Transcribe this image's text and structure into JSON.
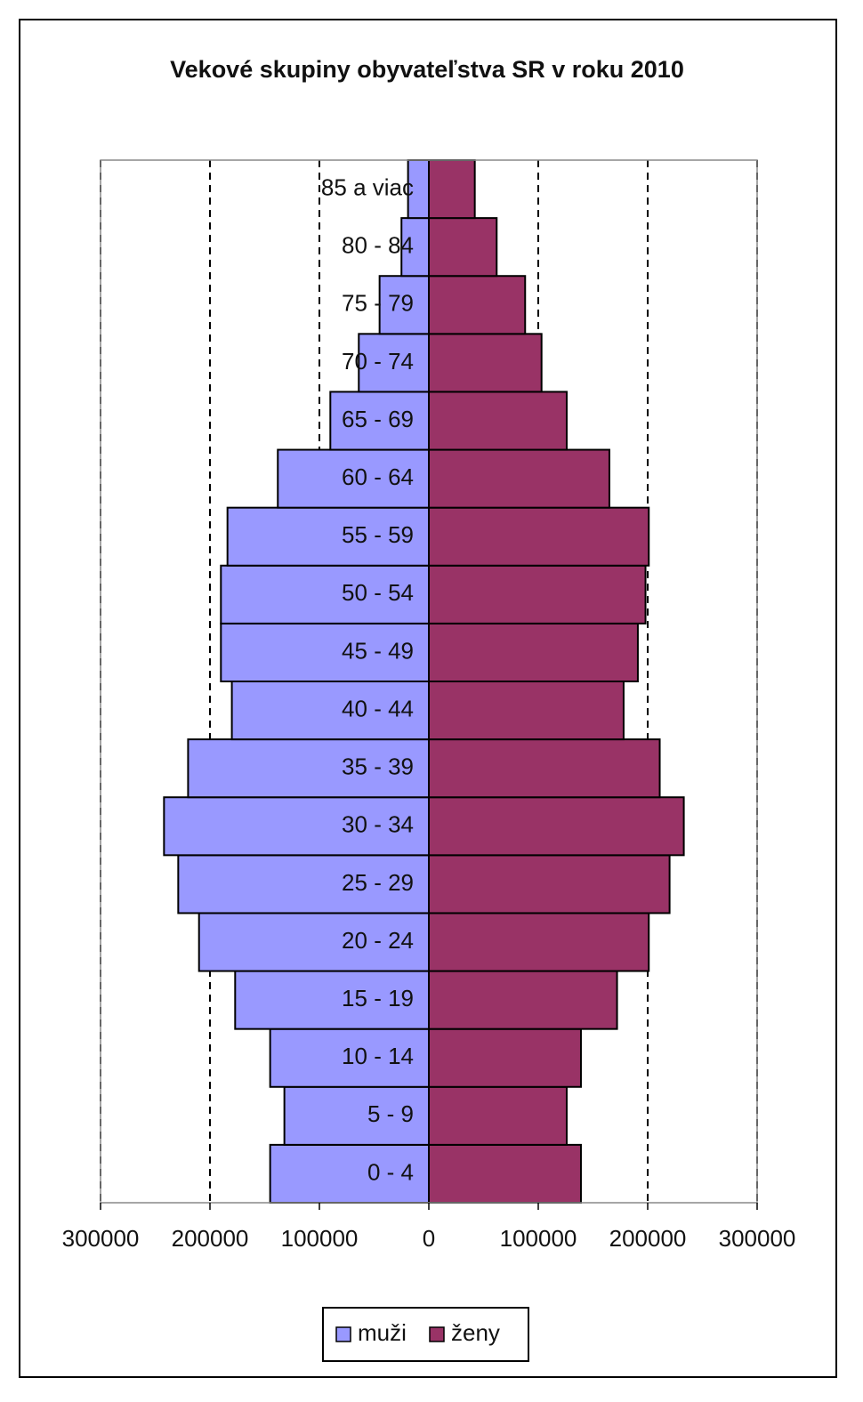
{
  "chart_data": {
    "type": "pyramid",
    "title": "Vekové skupiny obyvateľstva SR v roku 2010",
    "categories": [
      "0 - 4",
      "5 - 9",
      "10 - 14",
      "15 - 19",
      "20 - 24",
      "25 - 29",
      "30 - 34",
      "35 - 39",
      "40 - 44",
      "45 - 49",
      "50 - 54",
      "55 - 59",
      "60 - 64",
      "65 - 69",
      "70 - 74",
      "75 - 79",
      "80 - 84",
      "85 a viac"
    ],
    "series": [
      {
        "name": "muži",
        "color": "#9999ff",
        "values": [
          -145000,
          -132000,
          -145000,
          -177000,
          -210000,
          -229000,
          -242000,
          -220000,
          -180000,
          -190000,
          -190000,
          -184000,
          -138000,
          -90000,
          -64000,
          -45000,
          -25000,
          -19000
        ]
      },
      {
        "name": "ženy",
        "color": "#993366",
        "values": [
          139000,
          126000,
          139000,
          172000,
          201000,
          220000,
          233000,
          211000,
          178000,
          191000,
          198000,
          201000,
          165000,
          126000,
          103000,
          88000,
          62000,
          42000
        ]
      }
    ],
    "xlim": [
      -300000,
      300000
    ],
    "xticks": [
      {
        "value": -300000,
        "label": "300000"
      },
      {
        "value": -200000,
        "label": "200000"
      },
      {
        "value": -100000,
        "label": "100000"
      },
      0,
      100000,
      200000,
      300000
    ],
    "grid": true,
    "legend": "bottom"
  }
}
